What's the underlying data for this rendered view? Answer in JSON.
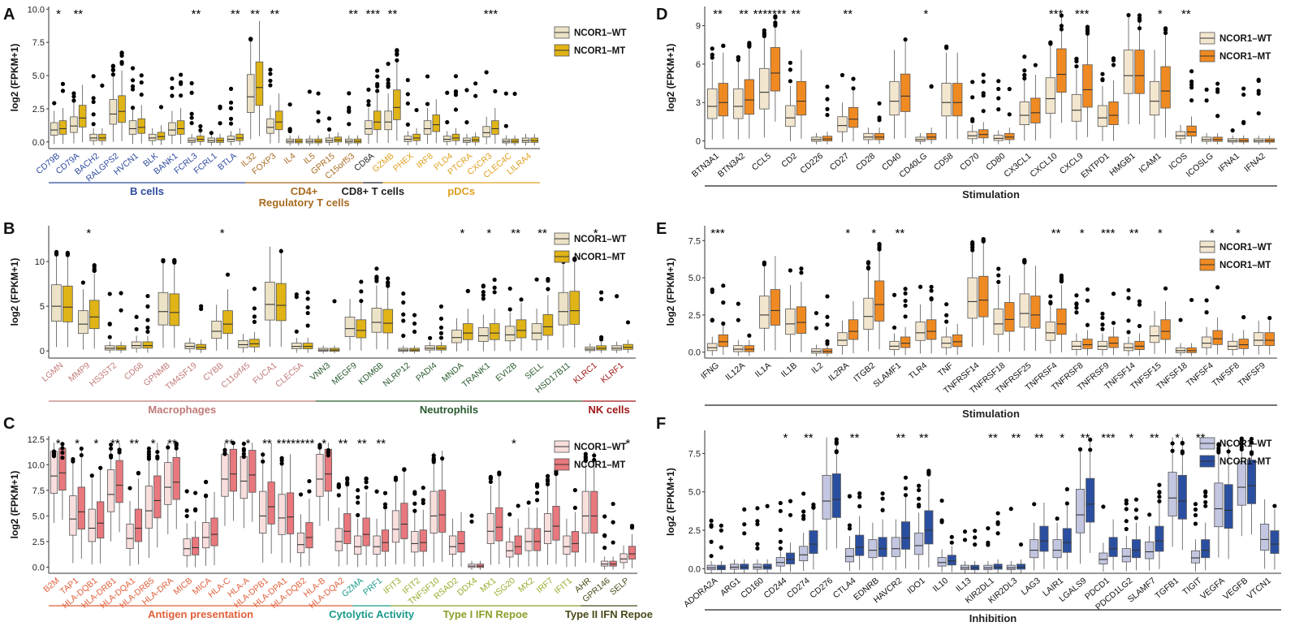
{
  "colors": {
    "A": {
      "wt": "#ece2c6",
      "mt": "#e0b417"
    },
    "B": {
      "wt": "#ece2c6",
      "mt": "#e0b417"
    },
    "C": {
      "wt": "#f9dede",
      "mt": "#e8787d"
    },
    "D": {
      "wt": "#f3e6cf",
      "mt": "#ef8a22"
    },
    "E": {
      "wt": "#f3e6cf",
      "mt": "#ef8a22"
    },
    "F": {
      "wt": "#c3c6e0",
      "mt": "#2b4fa0"
    }
  },
  "chart_data": [
    {
      "id": "A",
      "type": "box",
      "ylabel": "log2 (FPKM+1)",
      "ylim": [
        -0.5,
        10.2
      ],
      "yticks": [
        0,
        2.5,
        5,
        7.5,
        10
      ],
      "ytick_labels": [
        "0.0",
        "2.5",
        "5.0",
        "7.5",
        "10.0"
      ],
      "legend": [
        "NCOR1–WT",
        "NCOR1–MT"
      ],
      "genes": [
        "CD79B",
        "CD79A",
        "BACH2",
        "RALGPS2",
        "HVCN1",
        "BLK",
        "BANK1",
        "FCRL3",
        "FCRL1",
        "BTLA",
        "IL32",
        "FOXP3",
        "IL4",
        "IL5",
        "GPR15",
        "C15orf53",
        "CD8A",
        "GZMB",
        "PHEX",
        "IRF8",
        "PLD4",
        "PTCRA",
        "CXCR3",
        "CLEC4C",
        "LILRA4"
      ],
      "medians_wt": [
        0.9,
        1.2,
        0.3,
        2.1,
        1.0,
        0.3,
        0.9,
        0.1,
        0.1,
        0.2,
        3.4,
        1.1,
        0.05,
        0.05,
        0.1,
        0.05,
        1.0,
        1.5,
        0.2,
        1.0,
        0.2,
        0.1,
        0.7,
        0.05,
        0.1
      ],
      "medians_mt": [
        1.0,
        1.8,
        0.3,
        2.3,
        1.1,
        0.4,
        1.0,
        0.2,
        0.1,
        0.3,
        4.1,
        1.5,
        0.05,
        0.05,
        0.15,
        0.05,
        1.5,
        2.6,
        0.3,
        1.3,
        0.3,
        0.15,
        1.0,
        0.05,
        0.1
      ],
      "significance": [
        "*",
        "**",
        "",
        "",
        "",
        "",
        "",
        "**",
        "",
        "**",
        "**",
        "**",
        "",
        "",
        "",
        "**",
        "***",
        "**",
        "",
        "",
        "",
        "",
        "***",
        "",
        ""
      ],
      "groups": [
        {
          "label": "B cells",
          "start": 0,
          "end": 9,
          "color": "#2e4a9e"
        },
        {
          "label": "CD4+",
          "label2": "Regulatory T cells",
          "start": 10,
          "end": 15,
          "color": "#a86a1f"
        },
        {
          "label": "CD8+ T cells",
          "start": 16,
          "end": 16,
          "color": "#222222"
        },
        {
          "label": "pDCs",
          "start": 17,
          "end": 24,
          "color": "#e0a020"
        }
      ],
      "gene_colors": [
        "#2e4a9e",
        "#2e4a9e",
        "#2e4a9e",
        "#2e4a9e",
        "#2e4a9e",
        "#2e4a9e",
        "#2e4a9e",
        "#2e4a9e",
        "#2e4a9e",
        "#2e4a9e",
        "#a86a1f",
        "#a86a1f",
        "#a86a1f",
        "#a86a1f",
        "#a86a1f",
        "#a86a1f",
        "#222222",
        "#e0a020",
        "#e0a020",
        "#e0a020",
        "#e0a020",
        "#e0a020",
        "#e0a020",
        "#e0a020",
        "#e0a020"
      ]
    },
    {
      "id": "B",
      "type": "box",
      "ylabel": "log2 (FPKM+1)",
      "ylim": [
        -0.8,
        14
      ],
      "yticks": [
        0,
        5,
        10
      ],
      "ytick_labels": [
        "0",
        "5",
        "10"
      ],
      "legend": [
        "NCOR1–WT",
        "NCOR1–MT"
      ],
      "genes": [
        "LGMN",
        "MMP9",
        "HS3ST2",
        "CD68",
        "GPNMB",
        "TM4SF19",
        "CYBB",
        "C11orf45",
        "FUCA1",
        "CLEC5A",
        "VNN3",
        "MEGF9",
        "KDM6B",
        "NLRP12",
        "PADI4",
        "MNDA",
        "TRANK1",
        "EVI2B",
        "SELL",
        "HSD17B11",
        "KLRC1",
        "KLRF1"
      ],
      "medians_wt": [
        5.0,
        3.0,
        0.3,
        0.6,
        4.4,
        0.5,
        2.2,
        0.7,
        5.2,
        0.5,
        0.1,
        2.5,
        3.2,
        0.1,
        0.3,
        1.5,
        1.7,
        1.8,
        2.0,
        4.4,
        0.2,
        0.3
      ],
      "medians_mt": [
        4.9,
        3.8,
        0.3,
        0.6,
        4.3,
        0.4,
        3.0,
        0.8,
        5.1,
        0.5,
        0.1,
        2.3,
        3.1,
        0.1,
        0.3,
        2.0,
        2.0,
        2.3,
        2.7,
        4.5,
        0.3,
        0.4
      ],
      "significance": [
        "",
        "*",
        "",
        "",
        "",
        "",
        "*",
        "",
        "",
        "",
        "",
        "",
        "",
        "",
        "",
        "*",
        "*",
        "**",
        "**",
        "",
        "*",
        ""
      ],
      "groups": [
        {
          "label": "Macrophages",
          "start": 0,
          "end": 9,
          "color": "#c07a78"
        },
        {
          "label": "Neutrophils",
          "start": 10,
          "end": 19,
          "color": "#2a5a2e"
        },
        {
          "label": "NK cells",
          "start": 20,
          "end": 21,
          "color": "#a01818"
        }
      ],
      "gene_colors": [
        "#c07a78",
        "#c07a78",
        "#c07a78",
        "#c07a78",
        "#c07a78",
        "#c07a78",
        "#c07a78",
        "#c07a78",
        "#c07a78",
        "#c07a78",
        "#2a5a2e",
        "#2a5a2e",
        "#2a5a2e",
        "#2a5a2e",
        "#2a5a2e",
        "#2a5a2e",
        "#2a5a2e",
        "#2a5a2e",
        "#2a5a2e",
        "#2a5a2e",
        "#a01818",
        "#a01818"
      ]
    },
    {
      "id": "C",
      "type": "box",
      "ylabel": "log2 (FPKM+1)",
      "ylim": [
        -0.6,
        12.8
      ],
      "yticks": [
        0,
        2.5,
        5,
        7.5,
        10,
        12.5
      ],
      "ytick_labels": [
        "0.0",
        "2.5",
        "5.0",
        "7.5",
        "10.0",
        "12.5"
      ],
      "legend": [
        "NCOR1–WT",
        "NCOR1–MT"
      ],
      "genes": [
        "B2M",
        "TAP1",
        "HLA-DQB1",
        "HLA-DRB1",
        "HLA-DQA1",
        "HLA-DRB5",
        "HLA-DRA",
        "MICB",
        "MICA",
        "HLA-C",
        "HLA-A",
        "HLA-DPB1",
        "HLA-DPA1",
        "HLA-DQB2",
        "HLA-B",
        "HLA-DQA2",
        "GZMA",
        "PRF1",
        "IFIT3",
        "IFIT2",
        "TNFSF10",
        "RSAD2",
        "DDX4",
        "MX1",
        "ISG20",
        "MX2",
        "IRF7",
        "IFIT1",
        "AHR",
        "GPR146",
        "SELP"
      ],
      "medians_wt": [
        8.9,
        4.7,
        3.8,
        7.1,
        2.8,
        5.5,
        7.8,
        1.8,
        2.9,
        8.6,
        8.4,
        5.0,
        4.8,
        2.2,
        8.6,
        2.5,
        2.0,
        2.0,
        3.7,
        2.3,
        5.0,
        2.0,
        0.1,
        3.5,
        1.6,
        2.5,
        3.5,
        2.0,
        5.0,
        0.3,
        0.8
      ],
      "medians_mt": [
        9.2,
        5.4,
        4.3,
        8.0,
        3.8,
        6.5,
        8.3,
        1.9,
        3.2,
        9.1,
        9.0,
        5.9,
        4.9,
        2.9,
        9.1,
        3.5,
        3.2,
        2.4,
        4.2,
        2.4,
        5.1,
        2.3,
        0.1,
        3.9,
        2.0,
        2.5,
        4.0,
        2.3,
        5.0,
        0.3,
        1.3
      ],
      "significance": [
        "*",
        "*",
        "*",
        "**",
        "**",
        "*",
        "**",
        "",
        "",
        "**",
        "*",
        "**",
        "****",
        "****",
        "*",
        "**",
        "**",
        "**",
        "",
        "",
        "",
        "",
        "",
        "",
        "*",
        "",
        "",
        "",
        "",
        "",
        "*"
      ],
      "groups": [
        {
          "label": "Antigen presentation",
          "start": 0,
          "end": 15,
          "color": "#e0603a"
        },
        {
          "label": "Cytolytic Activity",
          "start": 16,
          "end": 17,
          "color": "#1a9a8a"
        },
        {
          "label": "Type I IFN Repoe",
          "start": 18,
          "end": 27,
          "color": "#8aa02a"
        },
        {
          "label": "Type II IFN Repoe",
          "start": 28,
          "end": 30,
          "color": "#4a4a1a"
        }
      ],
      "gene_colors": [
        "#e0603a",
        "#e0603a",
        "#e0603a",
        "#e0603a",
        "#e0603a",
        "#e0603a",
        "#e0603a",
        "#e0603a",
        "#e0603a",
        "#e0603a",
        "#e0603a",
        "#e0603a",
        "#e0603a",
        "#e0603a",
        "#e0603a",
        "#e0603a",
        "#1a9a8a",
        "#1a9a8a",
        "#9aaa2a",
        "#9aaa2a",
        "#9aaa2a",
        "#9aaa2a",
        "#9aaa2a",
        "#9aaa2a",
        "#9aaa2a",
        "#9aaa2a",
        "#9aaa2a",
        "#9aaa2a",
        "#4a4a1a",
        "#4a4a1a",
        "#4a4a1a"
      ]
    },
    {
      "id": "D",
      "type": "box",
      "ylabel": "log2 (FPKM+1)",
      "ylim": [
        -0.6,
        10.5
      ],
      "yticks": [
        0,
        3,
        6,
        9
      ],
      "ytick_labels": [
        "0",
        "3",
        "6",
        "9"
      ],
      "legend": [
        "NCOR1–WT",
        "NCOR1–MT"
      ],
      "genes": [
        "BTN3A1",
        "BTN3A2",
        "CCL5",
        "CD2",
        "CD226",
        "CD27",
        "CD28",
        "CD40",
        "CD40LG",
        "CD58",
        "CD70",
        "CD80",
        "CX3CL1",
        "CXCL10",
        "CXCL9",
        "ENTPD1",
        "HMGB1",
        "ICAM1",
        "ICOS",
        "ICOSLG",
        "IFNA1",
        "IFNA2"
      ],
      "medians_wt": [
        2.7,
        2.7,
        3.8,
        1.8,
        0.1,
        1.2,
        0.3,
        3.1,
        0.1,
        3.0,
        0.4,
        0.2,
        2.0,
        3.3,
        2.4,
        1.8,
        5.1,
        3.1,
        0.4,
        0.1,
        0.02,
        0.01
      ],
      "medians_mt": [
        3.0,
        3.2,
        5.3,
        3.1,
        0.15,
        1.7,
        0.3,
        3.5,
        0.3,
        3.0,
        0.5,
        0.3,
        2.2,
        5.2,
        4.0,
        2.0,
        5.1,
        3.9,
        0.7,
        0.1,
        0.02,
        0.01
      ],
      "significance": [
        "**",
        "**",
        "*******",
        "**",
        "",
        "**",
        "",
        "",
        "*",
        "",
        "",
        "",
        "",
        "***",
        "***",
        "",
        "",
        "*",
        "**",
        "",
        "",
        ""
      ],
      "groups": [
        {
          "label": "Stimulation",
          "start": 0,
          "end": 21,
          "color": "#222222"
        }
      ],
      "gene_colors": []
    },
    {
      "id": "E",
      "type": "box",
      "ylabel": "log2 (FPKM+1)",
      "ylim": [
        -0.4,
        8.5
      ],
      "yticks": [
        0,
        2.5,
        5,
        7.5
      ],
      "ytick_labels": [
        "0.0",
        "2.5",
        "5.0",
        "7.5"
      ],
      "legend": [
        "NCOR1–WT",
        "NCOR1–MT"
      ],
      "genes": [
        "IFNG",
        "IL12A",
        "IL1A",
        "IL1B",
        "IL2",
        "IL2RA",
        "ITGB2",
        "SLAMF1",
        "TLR4",
        "TNF",
        "TNFRSF14",
        "TNFRSF18",
        "TNFRSF25",
        "TNFRSF4",
        "TNFRSF8",
        "TNFRSF9",
        "TNFSF14",
        "TNFSF15",
        "TNFSF18",
        "TNFSF4",
        "TNFSF8",
        "TNFSF9"
      ],
      "medians_wt": [
        0.3,
        0.2,
        2.5,
        1.9,
        0.05,
        0.8,
        2.4,
        0.4,
        1.3,
        0.6,
        3.4,
        1.9,
        2.6,
        1.3,
        0.4,
        0.4,
        0.3,
        1.1,
        0.1,
        0.6,
        0.4,
        0.8
      ],
      "medians_mt": [
        0.7,
        0.2,
        2.8,
        2.0,
        0.05,
        1.4,
        3.2,
        0.6,
        1.4,
        0.7,
        3.5,
        2.2,
        2.5,
        1.9,
        0.5,
        0.6,
        0.4,
        1.4,
        0.1,
        0.9,
        0.5,
        0.8
      ],
      "significance": [
        "***",
        "",
        "",
        "",
        "",
        "*",
        "*",
        "**",
        "",
        "",
        "",
        "",
        "",
        "**",
        "*",
        "***",
        "**",
        "*",
        "",
        "*",
        "*",
        ""
      ],
      "groups": [
        {
          "label": "Stimulation",
          "start": 0,
          "end": 21,
          "color": "#222222"
        }
      ],
      "gene_colors": []
    },
    {
      "id": "F",
      "type": "box",
      "ylabel": "log2 (FPKM+1)",
      "ylim": [
        -0.3,
        9
      ],
      "yticks": [
        0,
        2.5,
        5,
        7.5
      ],
      "ytick_labels": [
        "0.0",
        "2.5",
        "5.0",
        "7.5"
      ],
      "legend": [
        "NCOR1–WT",
        "NCOR1–MT"
      ],
      "genes": [
        "ADORA2A",
        "ARG1",
        "CD160",
        "CD244",
        "CD274",
        "CD276",
        "CTLA4",
        "EDNRB",
        "HAVCR2",
        "IDO1",
        "IL10",
        "IL13",
        "KIR2DL1",
        "KIR2DL3",
        "LAG3",
        "LAIR1",
        "LGALS9",
        "PDCD1",
        "PDCD1LG2",
        "SLAMF7",
        "TGFB1",
        "TIGIT",
        "VEGFA",
        "VEGFB",
        "VTCN1"
      ],
      "medians_wt": [
        0.05,
        0.1,
        0.1,
        0.4,
        0.9,
        4.4,
        0.8,
        1.2,
        1.3,
        1.5,
        0.4,
        0.05,
        0.05,
        0.05,
        1.2,
        1.2,
        3.5,
        0.6,
        0.8,
        1.1,
        4.6,
        0.7,
        3.9,
        5.3,
        1.9
      ],
      "medians_mt": [
        0.05,
        0.1,
        0.1,
        0.6,
        1.6,
        4.5,
        1.4,
        1.3,
        2.0,
        2.5,
        0.5,
        0.05,
        0.1,
        0.1,
        1.8,
        1.7,
        4.2,
        1.3,
        1.2,
        1.8,
        4.4,
        1.2,
        3.8,
        5.4,
        1.6
      ],
      "significance": [
        "",
        "",
        "",
        "*",
        "**",
        "",
        "**",
        "",
        "**",
        "**",
        "",
        "",
        "**",
        "**",
        "**",
        "*",
        "**",
        "***",
        "*",
        "**",
        "*",
        "**",
        "",
        "",
        ""
      ],
      "groups": [
        {
          "label": "Inhibition",
          "start": 0,
          "end": 24,
          "color": "#222222"
        }
      ],
      "gene_colors": []
    }
  ]
}
